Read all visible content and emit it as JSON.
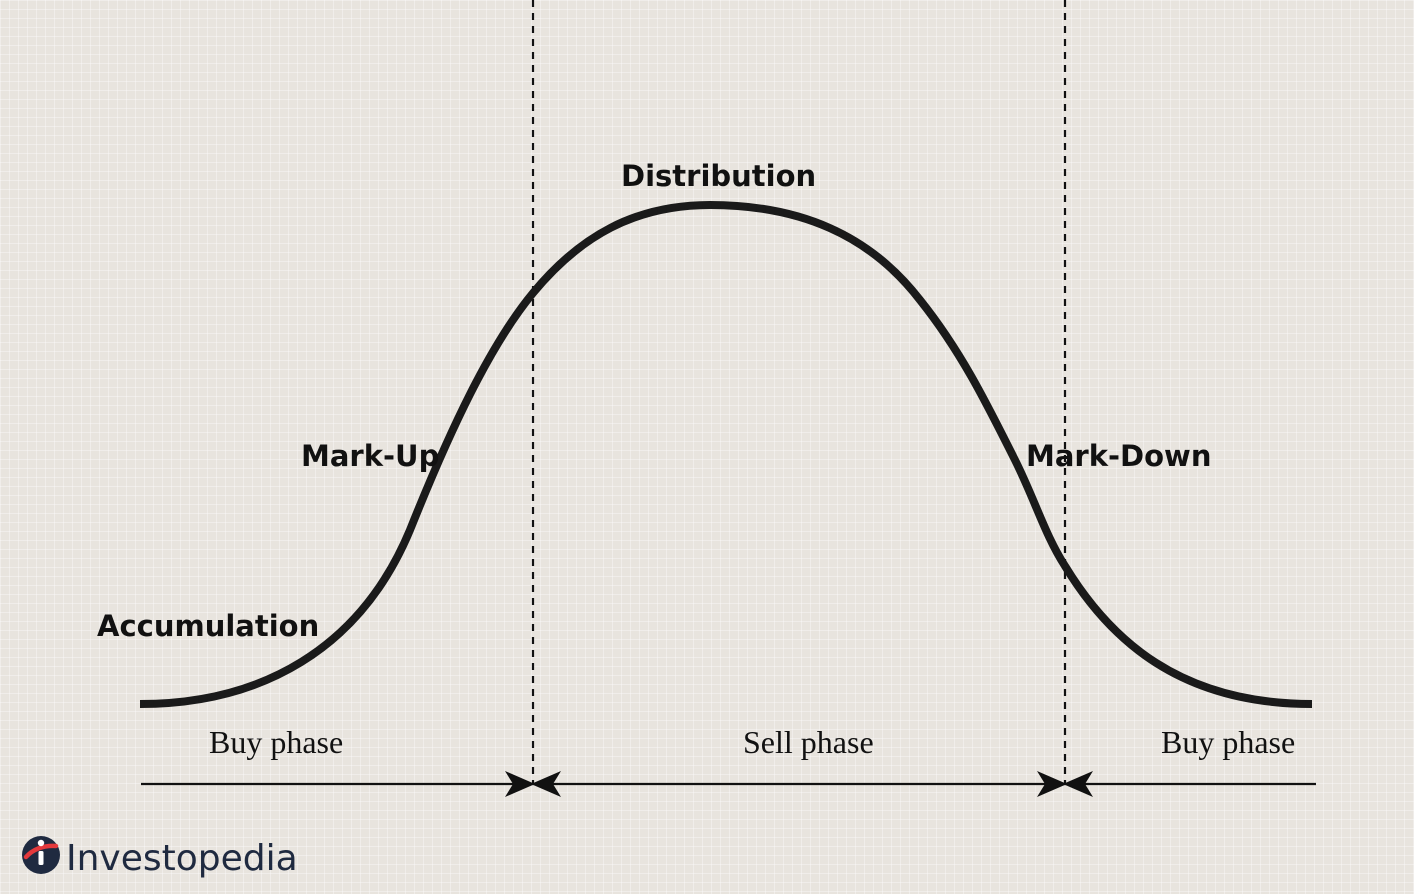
{
  "stages": {
    "accumulation": "Accumulation",
    "markup": "Mark-Up",
    "distribution": "Distribution",
    "markdown": "Mark-Down"
  },
  "phases": {
    "buy_left": "Buy phase",
    "sell": "Sell phase",
    "buy_right": "Buy phase"
  },
  "brand": {
    "name": "Investopedia",
    "logo_icon": "investopedia-logo-icon"
  },
  "colors": {
    "background": "#e8e4de",
    "ink": "#111111",
    "brand_navy": "#1f2a40",
    "brand_red": "#e4393c"
  }
}
